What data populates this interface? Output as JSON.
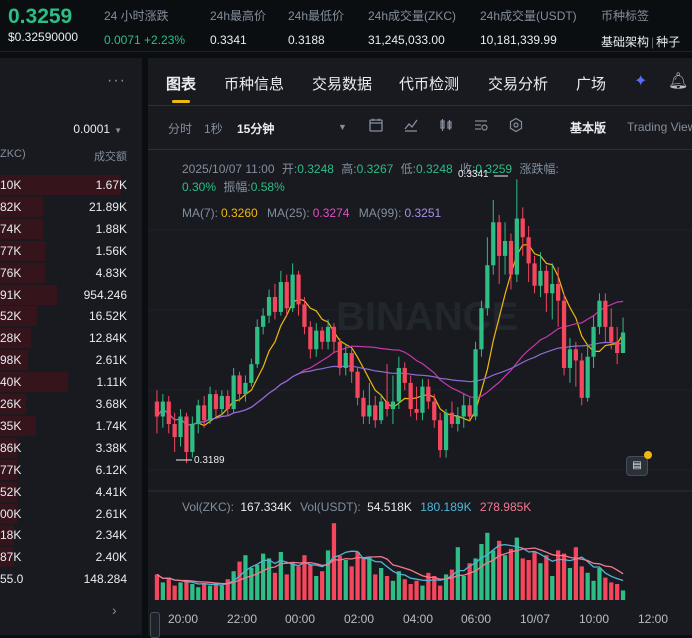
{
  "header": {
    "last_price": "0.3259",
    "last_price_usd": "$0.32590000",
    "change_label": "24 小时涨跌",
    "change_value": "0.0071 +2.23%",
    "high_label": "24h最高价",
    "high_value": "0.3341",
    "low_label": "24h最低价",
    "low_value": "0.3188",
    "vol_base_label": "24h成交量(ZKC)",
    "vol_base_value": "31,245,033.00",
    "vol_quote_label": "24h成交量(USDT)",
    "vol_quote_value": "10,181,339.99",
    "tag_label": "币种标签",
    "tag_1": "基础架构",
    "tag_sep": "|",
    "tag_2": "种子"
  },
  "orderbook": {
    "more_icon": "more-dots-icon",
    "step": "0.0001",
    "col_amount": "ZKC)",
    "col_total": "成交额",
    "rows": [
      {
        "a": "10K",
        "t": "1.67K",
        "w": 0.85
      },
      {
        "a": "82K",
        "t": "21.89K",
        "w": 0.3
      },
      {
        "a": "74K",
        "t": "1.88K",
        "w": 0.3
      },
      {
        "a": "77K",
        "t": "1.56K",
        "w": 0.32
      },
      {
        "a": "76K",
        "t": "4.83K",
        "w": 0.32
      },
      {
        "a": "91K",
        "t": "954.246",
        "w": 0.4
      },
      {
        "a": "52K",
        "t": "16.52K",
        "w": 0.26
      },
      {
        "a": "28K",
        "t": "12.84K",
        "w": 0.22
      },
      {
        "a": "98K",
        "t": "2.61K",
        "w": 0.2
      },
      {
        "a": "40K",
        "t": "1.11K",
        "w": 0.48
      },
      {
        "a": "26K",
        "t": "3.68K",
        "w": 0.18
      },
      {
        "a": "35K",
        "t": "1.74K",
        "w": 0.25
      },
      {
        "a": "86K",
        "t": "3.38K",
        "w": 0.12
      },
      {
        "a": "77K",
        "t": "6.12K",
        "w": 0.12
      },
      {
        "a": "52K",
        "t": "4.41K",
        "w": 0.12
      },
      {
        "a": "00K",
        "t": "2.61K",
        "w": 0.12
      },
      {
        "a": "18K",
        "t": "2.34K",
        "w": 0.1
      },
      {
        "a": "87K",
        "t": "2.40K",
        "w": 0.1
      }
    ],
    "last_amount": "55.0",
    "last_total": "148.284"
  },
  "tabs": [
    "图表",
    "币种信息",
    "交易数据",
    "代币检测",
    "交易分析",
    "广场"
  ],
  "toolbar": {
    "time_label": "分时",
    "sec_label": "1秒",
    "interval_label": "15分钟",
    "basic_label": "基本版",
    "tv_label": "Trading View"
  },
  "ohlc": {
    "date": "2025/10/07 11:00",
    "open_label": "开:",
    "open": "0.3248",
    "high_label": "高:",
    "high": "0.3267",
    "low_label": "低:",
    "low": "0.3248",
    "close_label": "收:",
    "close": "0.3259",
    "chg_label": "涨跌幅:",
    "chg": "0.30%",
    "amp_label": "振幅:",
    "amp": "0.58%"
  },
  "ma": {
    "ma7_label": "MA(7):",
    "ma7": "0.3260",
    "ma25_label": "MA(25):",
    "ma25": "0.3274",
    "ma99_label": "MA(99):",
    "ma99": "0.3251"
  },
  "marks": {
    "high": "0.3341",
    "low": "0.3189"
  },
  "vol": {
    "base_label": "Vol(ZKC):",
    "base": "167.334K",
    "quote_label": "Vol(USDT):",
    "quote": "54.518K",
    "v2": "180.189K",
    "v3": "278.985K"
  },
  "colors": {
    "up": "#2ebd85",
    "down": "#f6465d",
    "ma7": "#f0b90b",
    "ma25": "#c837ab",
    "ma99": "#8d6bd8"
  },
  "watermark": "BINANCE",
  "chart_data": {
    "type": "candlestick",
    "x_ticks": [
      "20:00",
      "22:00",
      "00:00",
      "02:00",
      "04:00",
      "06:00",
      "10/07",
      "10:00",
      "12:00"
    ],
    "candles": [
      [
        0.3222,
        0.3214,
        0.3228,
        0.3205
      ],
      [
        0.3214,
        0.3222,
        0.3226,
        0.3208
      ],
      [
        0.3222,
        0.321,
        0.3225,
        0.3205
      ],
      [
        0.321,
        0.3203,
        0.3216,
        0.3195
      ],
      [
        0.3203,
        0.3214,
        0.3218,
        0.3198
      ],
      [
        0.3214,
        0.3195,
        0.3216,
        0.3189
      ],
      [
        0.3195,
        0.321,
        0.3214,
        0.3192
      ],
      [
        0.321,
        0.322,
        0.3223,
        0.3205
      ],
      [
        0.322,
        0.3212,
        0.3225,
        0.3208
      ],
      [
        0.3212,
        0.3226,
        0.323,
        0.321
      ],
      [
        0.3226,
        0.3218,
        0.3228,
        0.3214
      ],
      [
        0.3218,
        0.3225,
        0.3228,
        0.3215
      ],
      [
        0.3225,
        0.3218,
        0.3228,
        0.3214
      ],
      [
        0.3218,
        0.3236,
        0.324,
        0.3216
      ],
      [
        0.3236,
        0.3226,
        0.3238,
        0.3222
      ],
      [
        0.3226,
        0.3232,
        0.3236,
        0.3222
      ],
      [
        0.3232,
        0.3242,
        0.3245,
        0.323
      ],
      [
        0.3242,
        0.3262,
        0.3266,
        0.324
      ],
      [
        0.3262,
        0.3268,
        0.3272,
        0.3258
      ],
      [
        0.3268,
        0.3278,
        0.3282,
        0.3264
      ],
      [
        0.3278,
        0.327,
        0.3285,
        0.3266
      ],
      [
        0.327,
        0.3286,
        0.3292,
        0.3268
      ],
      [
        0.3286,
        0.3272,
        0.329,
        0.3268
      ],
      [
        0.3272,
        0.329,
        0.3296,
        0.327
      ],
      [
        0.329,
        0.3274,
        0.3292,
        0.3268
      ],
      [
        0.3274,
        0.3262,
        0.3278,
        0.3258
      ],
      [
        0.3262,
        0.325,
        0.3265,
        0.3245
      ],
      [
        0.325,
        0.326,
        0.3264,
        0.3246
      ],
      [
        0.326,
        0.3254,
        0.3262,
        0.325
      ],
      [
        0.3254,
        0.3262,
        0.3266,
        0.325
      ],
      [
        0.3262,
        0.3254,
        0.3264,
        0.3248
      ],
      [
        0.3254,
        0.324,
        0.3256,
        0.3236
      ],
      [
        0.324,
        0.3248,
        0.3252,
        0.3236
      ],
      [
        0.3248,
        0.3238,
        0.325,
        0.3232
      ],
      [
        0.3238,
        0.3224,
        0.324,
        0.322
      ],
      [
        0.3224,
        0.3214,
        0.3228,
        0.321
      ],
      [
        0.3214,
        0.322,
        0.3232,
        0.321
      ],
      [
        0.322,
        0.3212,
        0.3225,
        0.3208
      ],
      [
        0.3212,
        0.3222,
        0.3226,
        0.321
      ],
      [
        0.3222,
        0.3218,
        0.3242,
        0.3214
      ],
      [
        0.3218,
        0.3222,
        0.3236,
        0.321
      ],
      [
        0.3222,
        0.324,
        0.3246,
        0.3218
      ],
      [
        0.324,
        0.3232,
        0.3243,
        0.3228
      ],
      [
        0.3232,
        0.3218,
        0.3236,
        0.3214
      ],
      [
        0.3218,
        0.3216,
        0.323,
        0.3212
      ],
      [
        0.3216,
        0.323,
        0.3234,
        0.3212
      ],
      [
        0.323,
        0.3222,
        0.3234,
        0.3218
      ],
      [
        0.3222,
        0.3212,
        0.3226,
        0.3208
      ],
      [
        0.3212,
        0.3196,
        0.3216,
        0.3192
      ],
      [
        0.3196,
        0.3216,
        0.3218,
        0.3192
      ],
      [
        0.3216,
        0.321,
        0.3222,
        0.3208
      ],
      [
        0.321,
        0.3214,
        0.3219,
        0.3206
      ],
      [
        0.3214,
        0.322,
        0.3226,
        0.3208
      ],
      [
        0.322,
        0.3214,
        0.3224,
        0.3212
      ],
      [
        0.3214,
        0.325,
        0.3254,
        0.3212
      ],
      [
        0.325,
        0.3272,
        0.3276,
        0.3246
      ],
      [
        0.3272,
        0.3295,
        0.331,
        0.3268
      ],
      [
        0.3295,
        0.3318,
        0.333,
        0.329
      ],
      [
        0.3318,
        0.33,
        0.3322,
        0.3285
      ],
      [
        0.33,
        0.3308,
        0.3318,
        0.329
      ],
      [
        0.3308,
        0.329,
        0.3312,
        0.3282
      ],
      [
        0.329,
        0.332,
        0.3341,
        0.3286
      ],
      [
        0.332,
        0.331,
        0.3326,
        0.33
      ],
      [
        0.331,
        0.3296,
        0.3316,
        0.3286
      ],
      [
        0.3296,
        0.3284,
        0.33,
        0.328
      ],
      [
        0.3284,
        0.3292,
        0.3302,
        0.3278
      ],
      [
        0.3292,
        0.328,
        0.3295,
        0.327
      ],
      [
        0.328,
        0.3285,
        0.3296,
        0.3266
      ],
      [
        0.3285,
        0.3276,
        0.3294,
        0.3262
      ],
      [
        0.3276,
        0.324,
        0.328,
        0.3236
      ],
      [
        0.324,
        0.325,
        0.3256,
        0.3232
      ],
      [
        0.325,
        0.3244,
        0.3254,
        0.323
      ],
      [
        0.3244,
        0.3224,
        0.3248,
        0.322
      ],
      [
        0.3224,
        0.3246,
        0.3252,
        0.3222
      ],
      [
        0.3246,
        0.3262,
        0.3268,
        0.324
      ],
      [
        0.3262,
        0.3276,
        0.328,
        0.3258
      ],
      [
        0.3276,
        0.3262,
        0.328,
        0.3254
      ],
      [
        0.3262,
        0.3254,
        0.3272,
        0.325
      ],
      [
        0.3254,
        0.3248,
        0.3262,
        0.3242
      ],
      [
        0.3248,
        0.3259,
        0.3267,
        0.3248
      ]
    ],
    "volumes": [
      0.32,
      0.22,
      0.28,
      0.18,
      0.22,
      0.24,
      0.2,
      0.16,
      0.2,
      0.18,
      0.22,
      0.18,
      0.26,
      0.36,
      0.48,
      0.56,
      0.4,
      0.44,
      0.58,
      0.52,
      0.34,
      0.6,
      0.32,
      0.46,
      0.42,
      0.56,
      0.44,
      0.3,
      0.36,
      0.62,
      0.96,
      0.55,
      0.5,
      0.42,
      0.6,
      0.52,
      0.54,
      0.32,
      0.4,
      0.3,
      0.24,
      0.36,
      0.26,
      0.2,
      0.24,
      0.18,
      0.34,
      0.3,
      0.18,
      0.32,
      0.38,
      0.66,
      0.3,
      0.46,
      0.52,
      0.7,
      0.84,
      0.62,
      0.74,
      0.56,
      0.64,
      0.78,
      0.52,
      0.5,
      0.6,
      0.46,
      0.56,
      0.3,
      0.62,
      0.58,
      0.4,
      0.66,
      0.42,
      0.34,
      0.24,
      0.4,
      0.28,
      0.22,
      0.2,
      0.12
    ]
  }
}
